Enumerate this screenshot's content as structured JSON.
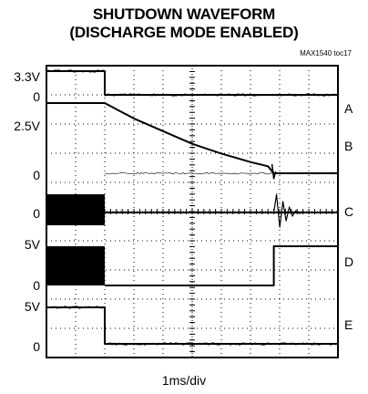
{
  "title_line1": "SHUTDOWN WAVEFORM",
  "title_line2": "(DISCHARGE MODE ENABLED)",
  "part_number": "MAX1540  toc17",
  "timebase": "1ms/div",
  "level_labels": [
    "3.3V",
    "0",
    "2.5V",
    "0",
    "0",
    "5V",
    "0",
    "5V",
    "0"
  ],
  "channel_labels": [
    "A",
    "B",
    "C",
    "D",
    "E"
  ],
  "chart_data": {
    "type": "line",
    "title": "SHUTDOWN WAVEFORM (DISCHARGE MODE ENABLED)",
    "xlabel": "1ms/div",
    "x_unit": "ms",
    "x_range": [
      0,
      10
    ],
    "grid": true,
    "series": [
      {
        "name": "A",
        "description": "3.3V logic, falls to 0 at shutdown",
        "points": [
          [
            0,
            3.3
          ],
          [
            2.0,
            3.3
          ],
          [
            2.0,
            0
          ],
          [
            10,
            0
          ]
        ]
      },
      {
        "name": "B",
        "description": "2.5V output, discharges to 0",
        "points": [
          [
            0,
            2.5
          ],
          [
            2.0,
            2.5
          ],
          [
            3.0,
            1.95
          ],
          [
            4.0,
            1.5
          ],
          [
            5.0,
            1.05
          ],
          [
            6.0,
            0.7
          ],
          [
            7.0,
            0.4
          ],
          [
            7.6,
            0.25
          ],
          [
            7.8,
            0
          ],
          [
            10,
            0
          ]
        ]
      },
      {
        "name": "C",
        "description": "Switching node, switching until shutdown, ringing near 7.8ms",
        "points": [
          [
            0,
            0
          ],
          [
            2.0,
            0
          ],
          [
            7.8,
            0
          ],
          [
            10,
            0
          ]
        ]
      },
      {
        "name": "D",
        "description": "Switching until shutdown, steps to 5V near 7.8ms",
        "points": [
          [
            0,
            5
          ],
          [
            2.0,
            0
          ],
          [
            7.8,
            0
          ],
          [
            7.8,
            5
          ],
          [
            10,
            5
          ]
        ]
      },
      {
        "name": "E",
        "description": "5V logic, falls to 0 at shutdown",
        "points": [
          [
            0,
            5
          ],
          [
            2.0,
            5
          ],
          [
            2.0,
            0
          ],
          [
            10,
            0
          ]
        ]
      }
    ]
  }
}
